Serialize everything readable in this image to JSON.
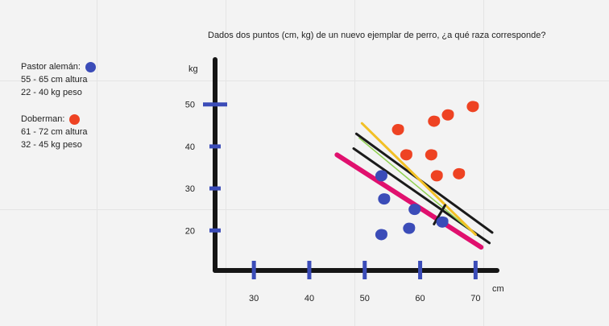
{
  "question": "Dados dos puntos (cm, kg) de un nuevo ejemplar de perro, ¿a qué raza corresponde?",
  "legend": [
    {
      "name": "Pastor alemán:",
      "color": "#3b4cb8",
      "height_range": "55 - 65 cm altura",
      "weight_range": "22 - 40 kg peso"
    },
    {
      "name": "Doberman:",
      "color": "#ee4323",
      "height_range": "61 - 72 cm altura",
      "weight_range": "32 - 45 kg peso"
    }
  ],
  "chart_data": {
    "type": "scatter",
    "title": "",
    "xlabel": "cm",
    "ylabel": "kg",
    "x_ticks": [
      30,
      40,
      50,
      60,
      70
    ],
    "y_ticks": [
      20,
      30,
      40,
      50
    ],
    "xlim": [
      23,
      73
    ],
    "ylim": [
      12,
      58
    ],
    "grid": false,
    "series": [
      {
        "name": "Pastor alemán",
        "color": "#3b4cb8",
        "points": [
          [
            53,
            33
          ],
          [
            53.5,
            27.5
          ],
          [
            53,
            19
          ],
          [
            58,
            20.5
          ],
          [
            59,
            25
          ],
          [
            64,
            22
          ]
        ]
      },
      {
        "name": "Doberman",
        "color": "#ee4323",
        "points": [
          [
            56,
            44
          ],
          [
            57.5,
            38
          ],
          [
            62.5,
            46
          ],
          [
            65,
            47.5
          ],
          [
            62,
            38
          ],
          [
            63,
            33
          ],
          [
            67,
            33.5
          ],
          [
            69.5,
            49.5
          ]
        ]
      }
    ],
    "lines": [
      {
        "color": "#e0106e",
        "from": [
          45,
          38
        ],
        "to": [
          71,
          16
        ]
      },
      {
        "color": "#1a1a1a",
        "from": [
          48,
          39.5
        ],
        "to": [
          72.5,
          17
        ]
      },
      {
        "color": "#1a1a1a",
        "from": [
          48.5,
          43
        ],
        "to": [
          73,
          19.5
        ]
      },
      {
        "color": "#8fd14f",
        "from": [
          49,
          42
        ],
        "to": [
          70,
          19
        ]
      },
      {
        "color": "#f2c026",
        "from": [
          49.5,
          45.5
        ],
        "to": [
          70,
          19
        ]
      }
    ],
    "annotations": [
      {
        "type": "perpendicular-mark",
        "color": "#1a1a1a",
        "from": [
          62.5,
          21.5
        ],
        "to": [
          64.5,
          26
        ]
      }
    ]
  }
}
